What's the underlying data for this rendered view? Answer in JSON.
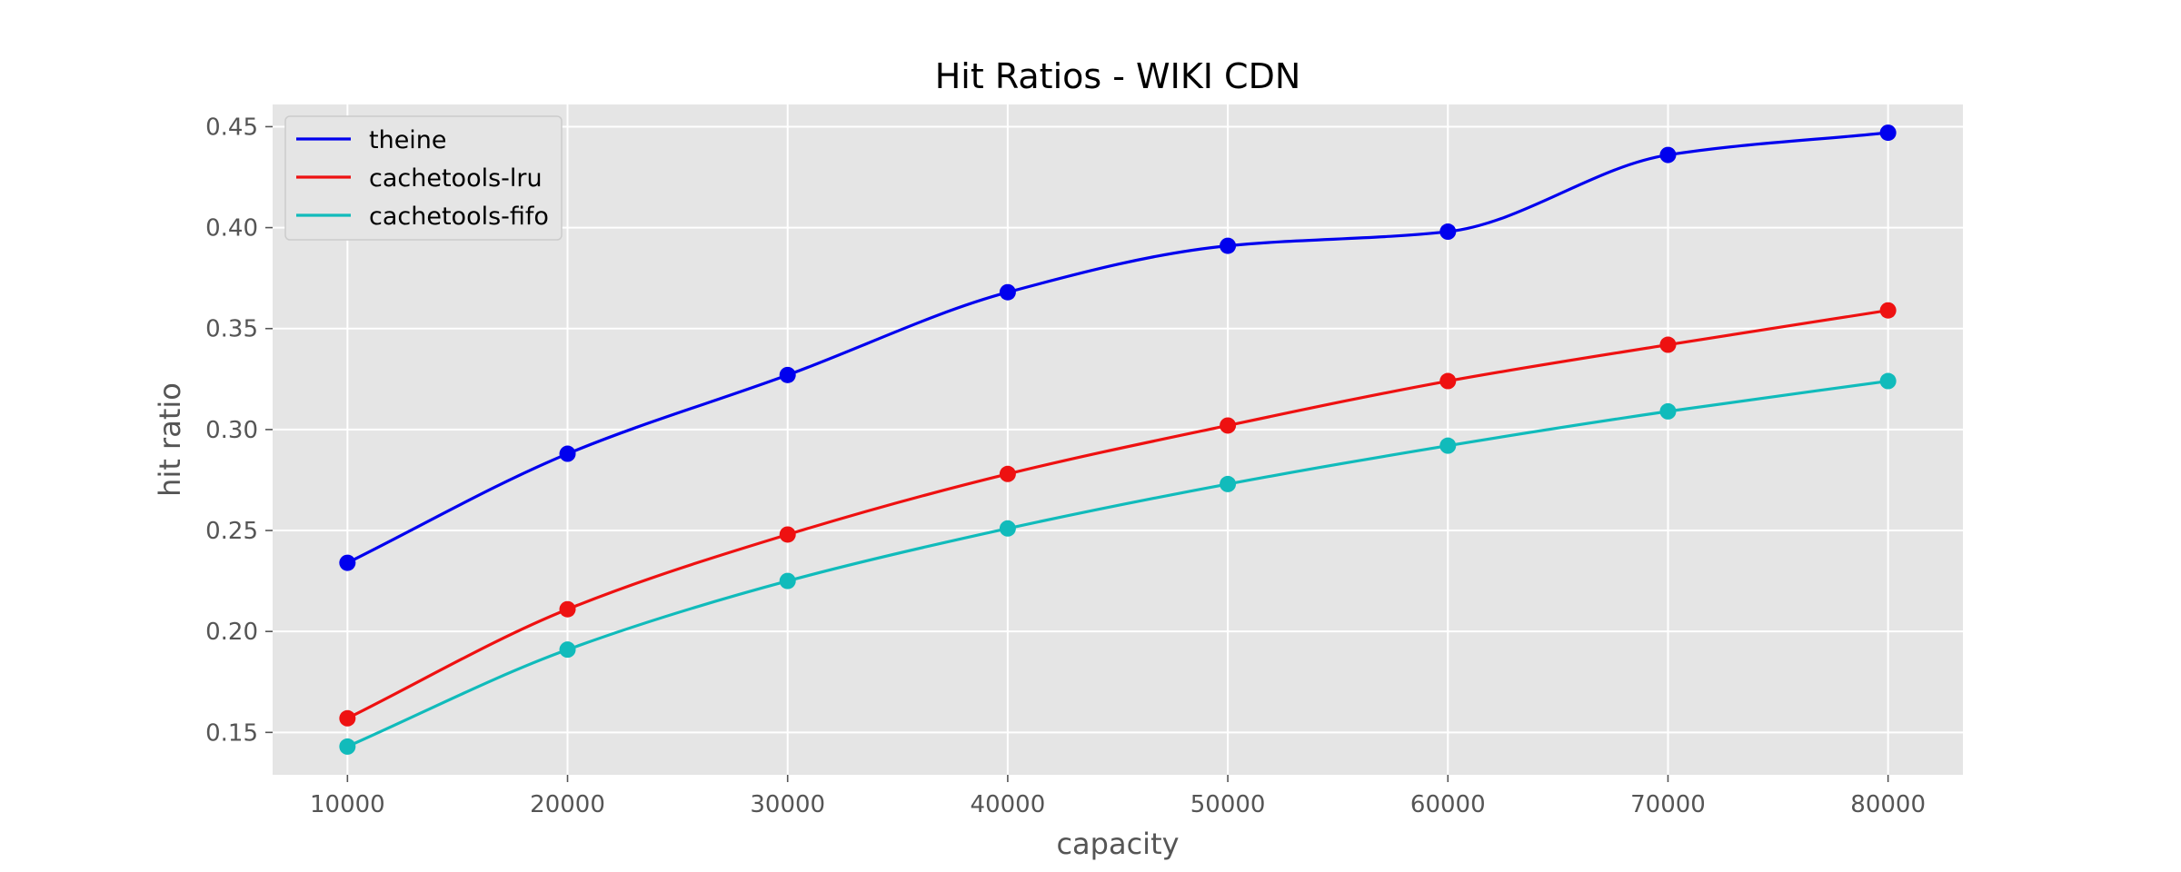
{
  "chart_data": {
    "type": "line",
    "title": "Hit Ratios - WIKI CDN",
    "xlabel": "capacity",
    "ylabel": "hit ratio",
    "x": [
      10000,
      20000,
      30000,
      40000,
      50000,
      60000,
      70000,
      80000
    ],
    "x_tick_labels": [
      "10000",
      "20000",
      "30000",
      "40000",
      "50000",
      "60000",
      "70000",
      "80000"
    ],
    "y_ticks": [
      0.15,
      0.2,
      0.25,
      0.3,
      0.35,
      0.4,
      0.45
    ],
    "y_tick_labels": [
      "0.15",
      "0.20",
      "0.25",
      "0.30",
      "0.35",
      "0.40",
      "0.45"
    ],
    "xlim": [
      6600,
      83400
    ],
    "ylim": [
      0.129,
      0.461
    ],
    "grid": true,
    "legend_position": "top-left",
    "series": [
      {
        "name": "theine",
        "color": "#0000ee",
        "values": [
          0.234,
          0.288,
          0.327,
          0.368,
          0.391,
          0.398,
          0.436,
          0.447
        ]
      },
      {
        "name": "cachetools-lru",
        "color": "#ee1111",
        "values": [
          0.157,
          0.211,
          0.248,
          0.278,
          0.302,
          0.324,
          0.342,
          0.359
        ]
      },
      {
        "name": "cachetools-fifo",
        "color": "#11bbbb",
        "values": [
          0.143,
          0.191,
          0.225,
          0.251,
          0.273,
          0.292,
          0.309,
          0.324
        ]
      }
    ],
    "background_color": "#e5e5e5",
    "grid_color": "#ffffff"
  }
}
